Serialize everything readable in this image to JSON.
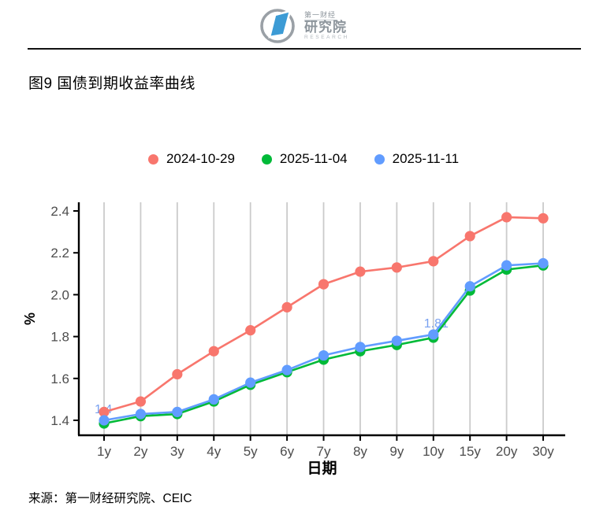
{
  "header": {
    "logo": {
      "brand_cn_small": "第一财经",
      "brand_cn_large": "研究院",
      "brand_en": "RESEARCH",
      "mark_color": "#3c9bd5",
      "ring_color": "#9aa0a6"
    }
  },
  "title": "图9 国债到期收益率曲线",
  "footer": {
    "source": "来源：第一财经研究院、CEIC"
  },
  "chart_data": {
    "type": "line",
    "title": "图9 国债到期收益率曲线",
    "xlabel": "日期",
    "ylabel": "%",
    "categories": [
      "1y",
      "2y",
      "3y",
      "4y",
      "5y",
      "6y",
      "7y",
      "8y",
      "9y",
      "10y",
      "15y",
      "20y",
      "30y"
    ],
    "series": [
      {
        "name": "2024-10-29",
        "color": "#F8766D",
        "values": [
          1.44,
          1.49,
          1.62,
          1.73,
          1.83,
          1.94,
          2.05,
          2.11,
          2.13,
          2.16,
          2.28,
          2.37,
          2.365
        ]
      },
      {
        "name": "2025-11-04",
        "color": "#00BA38",
        "values": [
          1.385,
          1.42,
          1.43,
          1.49,
          1.57,
          1.63,
          1.69,
          1.73,
          1.76,
          1.795,
          2.02,
          2.12,
          2.14
        ]
      },
      {
        "name": "2025-11-11",
        "color": "#619CFF",
        "values": [
          1.4,
          1.43,
          1.44,
          1.5,
          1.58,
          1.64,
          1.71,
          1.75,
          1.78,
          1.81,
          2.04,
          2.14,
          2.15
        ]
      }
    ],
    "ylim": [
      1.4,
      2.4
    ],
    "yticks": [
      1.4,
      1.6,
      1.8,
      2.0,
      2.2,
      2.4
    ],
    "grid": "vertical-only",
    "grid_color": "#cbcbcb",
    "axis_color": "#000000",
    "tick_label_color": "#4d4d4d",
    "legend_position": "top",
    "annotations": [
      {
        "text": "1.4",
        "series": 2,
        "category": "1y",
        "color": "#79a1f0"
      },
      {
        "text": "1.81",
        "series": 2,
        "category": "10y",
        "color": "#79a1f0"
      }
    ]
  }
}
